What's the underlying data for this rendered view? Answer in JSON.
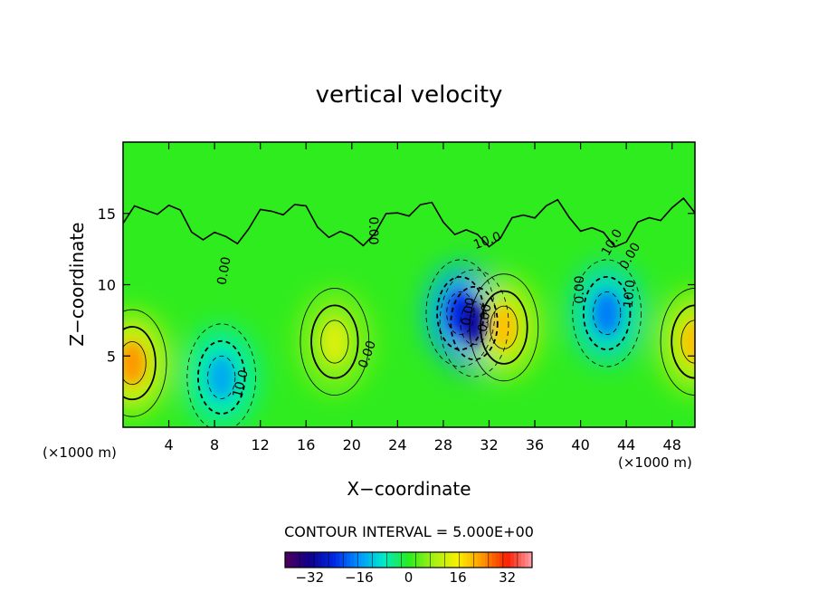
{
  "chart_data": {
    "type": "heatmap",
    "title": "vertical velocity",
    "xlabel": "X−coordinate",
    "ylabel": "Z−coordinate",
    "x_unit_left": "(×1000 m)",
    "x_unit_right": "(×1000 m)",
    "xlim": [
      0,
      50
    ],
    "ylim": [
      0,
      20
    ],
    "x_ticks": [
      4,
      8,
      12,
      16,
      20,
      24,
      28,
      32,
      36,
      40,
      44,
      48
    ],
    "y_ticks": [
      5,
      10,
      15
    ],
    "contour_interval_text": "CONTOUR INTERVAL = 5.000E+00",
    "colorbar": {
      "min": -40,
      "max": 40,
      "ticks": [
        -32,
        -16,
        0,
        16,
        32
      ],
      "tick_labels": [
        "−32",
        "−16",
        "0",
        "16",
        "32"
      ]
    },
    "contour_labels": [
      "0.00",
      "10.0",
      "0.00",
      "0.00",
      "10.0",
      "0.00",
      "0.00",
      "0.00",
      "10.0",
      "0.00",
      "10.0"
    ],
    "features": [
      {
        "kind": "updraft",
        "x": 0.8,
        "z": 4.5,
        "peak": 24
      },
      {
        "kind": "downdraft",
        "x": 8.6,
        "z": 3.5,
        "peak": -14
      },
      {
        "kind": "updraft",
        "x": 18.5,
        "z": 6.0,
        "peak": 13
      },
      {
        "kind": "downdraft",
        "x": 29.5,
        "z": 8.0,
        "peak": -24
      },
      {
        "kind": "downdraft",
        "x": 30.7,
        "z": 7.3,
        "peak": -30
      },
      {
        "kind": "updraft",
        "x": 33.3,
        "z": 7.0,
        "peak": 20
      },
      {
        "kind": "downdraft",
        "x": 42.3,
        "z": 8.0,
        "peak": -18
      },
      {
        "kind": "updraft",
        "x": 50.0,
        "z": 6.0,
        "peak": 20
      }
    ]
  }
}
